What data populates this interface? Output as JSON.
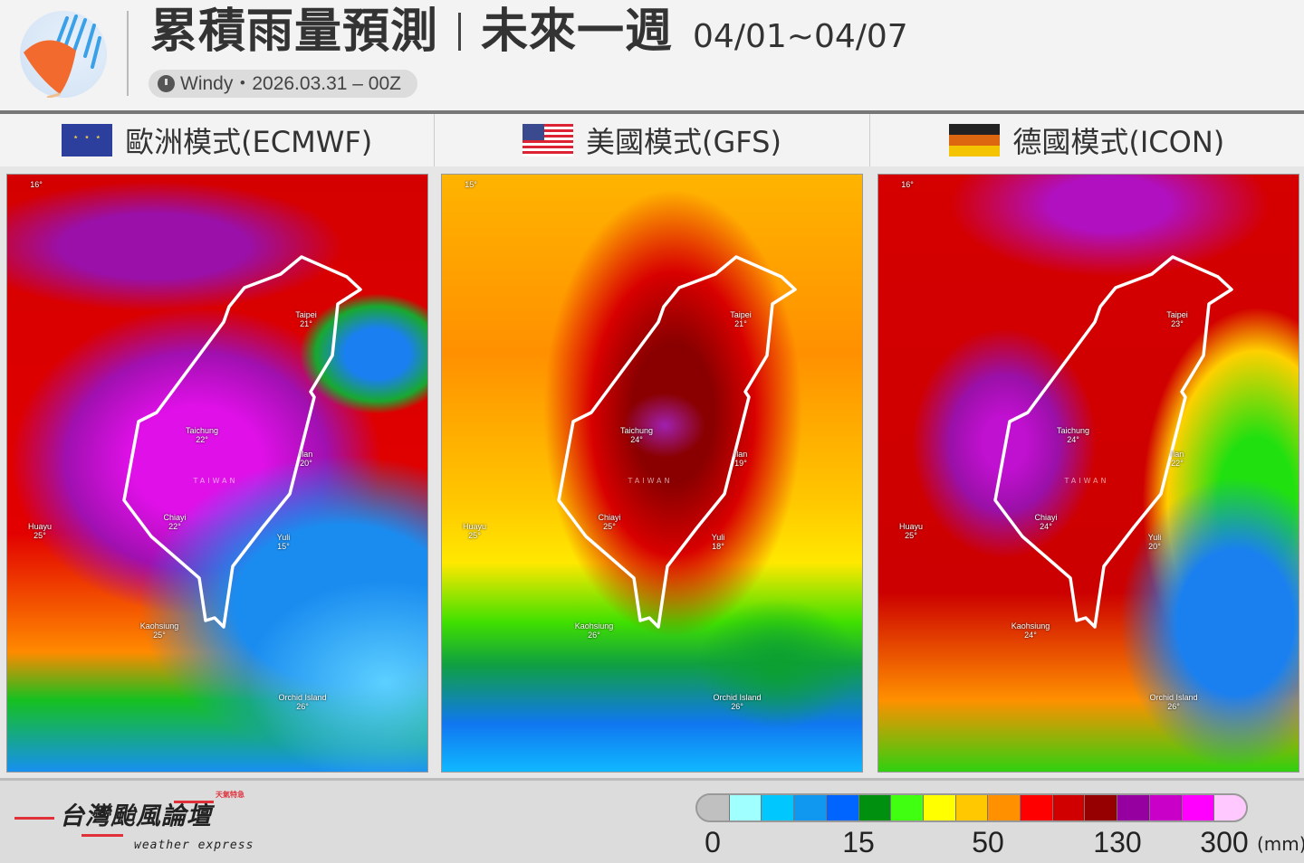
{
  "header": {
    "title": "累積雨量預測",
    "subtitle": "未來一週",
    "date_range": "04/01~04/07",
    "source": "Windy・2026.03.31 – 00Z",
    "icons": {
      "logo": "umbrella-rain-icon",
      "clock": "clock-icon"
    }
  },
  "models": [
    {
      "label": "歐洲模式(ECMWF)",
      "flag": "eu-flag-icon",
      "cities": [
        {
          "name": "",
          "temp": "16°"
        },
        {
          "name": "Taipei",
          "temp": "21°"
        },
        {
          "name": "Taichung",
          "temp": "22°"
        },
        {
          "name": "Ilan",
          "temp": "20°"
        },
        {
          "name": "Chiayi",
          "temp": "22°"
        },
        {
          "name": "Huayu",
          "temp": "25°"
        },
        {
          "name": "Yuli",
          "temp": "15°"
        },
        {
          "name": "Kaohsiung",
          "temp": "25°"
        },
        {
          "name": "Orchid Island",
          "temp": "26°"
        }
      ],
      "country": "TAIWAN"
    },
    {
      "label": "美國模式(GFS)",
      "flag": "us-flag-icon",
      "cities": [
        {
          "name": "",
          "temp": "15°"
        },
        {
          "name": "Taipei",
          "temp": "21°"
        },
        {
          "name": "Taichung",
          "temp": "24°"
        },
        {
          "name": "Ilan",
          "temp": "19°"
        },
        {
          "name": "Chiayi",
          "temp": "25°"
        },
        {
          "name": "Huayu",
          "temp": "25°"
        },
        {
          "name": "Yuli",
          "temp": "18°"
        },
        {
          "name": "Kaohsiung",
          "temp": "26°"
        },
        {
          "name": "Orchid Island",
          "temp": "26°"
        }
      ],
      "country": "TAIWAN"
    },
    {
      "label": "德國模式(ICON)",
      "flag": "de-flag-icon",
      "cities": [
        {
          "name": "",
          "temp": "16°"
        },
        {
          "name": "Taipei",
          "temp": "23°"
        },
        {
          "name": "Taichung",
          "temp": "24°"
        },
        {
          "name": "Ilan",
          "temp": "22°"
        },
        {
          "name": "Chiayi",
          "temp": "24°"
        },
        {
          "name": "Huayu",
          "temp": "25°"
        },
        {
          "name": "Yuli",
          "temp": "20°"
        },
        {
          "name": "Kaohsiung",
          "temp": "24°"
        },
        {
          "name": "Orchid Island",
          "temp": "26°"
        }
      ],
      "country": "TAIWAN"
    }
  ],
  "legend": {
    "colors": [
      "#c0c0c0",
      "#a0ffff",
      "#00c8ff",
      "#1098f0",
      "#0064ff",
      "#009010",
      "#40ff10",
      "#ffff00",
      "#ffc800",
      "#ff9000",
      "#ff0000",
      "#d00000",
      "#960000",
      "#9600a0",
      "#c800c8",
      "#ff00ff",
      "#ffc8ff"
    ],
    "ticks": [
      "0",
      "15",
      "50",
      "130",
      "300"
    ],
    "unit": "(mm)"
  },
  "footer": {
    "brand_zh": "台灣颱風論壇",
    "brand_en": "weather express",
    "brand_tag": "天氣特急"
  }
}
